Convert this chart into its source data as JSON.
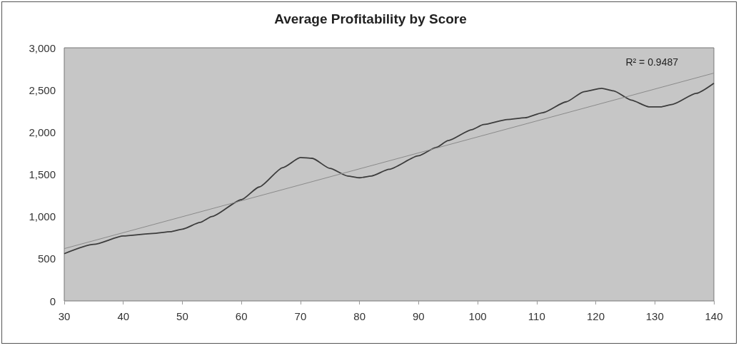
{
  "chart_data": {
    "type": "line",
    "title": "Average Profitability by Score",
    "annotations": [
      "R² = 0.9487"
    ],
    "series": [
      {
        "color": "#3c3c3c",
        "x": [
          30,
          35,
          40,
          45,
          48,
          50,
          53,
          55,
          60,
          63,
          67,
          70,
          72,
          75,
          78,
          80,
          82,
          85,
          90,
          93,
          95,
          99,
          101,
          105,
          108,
          111,
          115,
          118,
          121,
          123,
          126,
          129,
          131,
          133,
          137,
          140
        ],
        "values": [
          560,
          670,
          770,
          800,
          820,
          850,
          930,
          1000,
          1200,
          1350,
          1580,
          1700,
          1690,
          1570,
          1480,
          1460,
          1480,
          1560,
          1720,
          1820,
          1900,
          2030,
          2090,
          2150,
          2170,
          2230,
          2360,
          2480,
          2520,
          2490,
          2380,
          2300,
          2300,
          2330,
          2460,
          2580
        ]
      },
      {
        "type": "line",
        "color": "#8a8a8a",
        "x": [
          30,
          140
        ],
        "values": [
          620,
          2700
        ]
      }
    ],
    "xlim": [
      30,
      140
    ],
    "xticks": [
      30,
      40,
      50,
      60,
      70,
      80,
      90,
      100,
      110,
      120,
      130,
      140
    ],
    "ylim": [
      0,
      3000
    ],
    "yticks": [
      0,
      500,
      {
        "value": 1000,
        "label": "1,000"
      },
      {
        "value": 1500,
        "label": "1,500"
      },
      {
        "value": 2000,
        "label": "2,000"
      },
      {
        "value": 2500,
        "label": "2,500"
      },
      {
        "value": 3000,
        "label": "3,000"
      }
    ],
    "grid": false,
    "marker": "none"
  }
}
